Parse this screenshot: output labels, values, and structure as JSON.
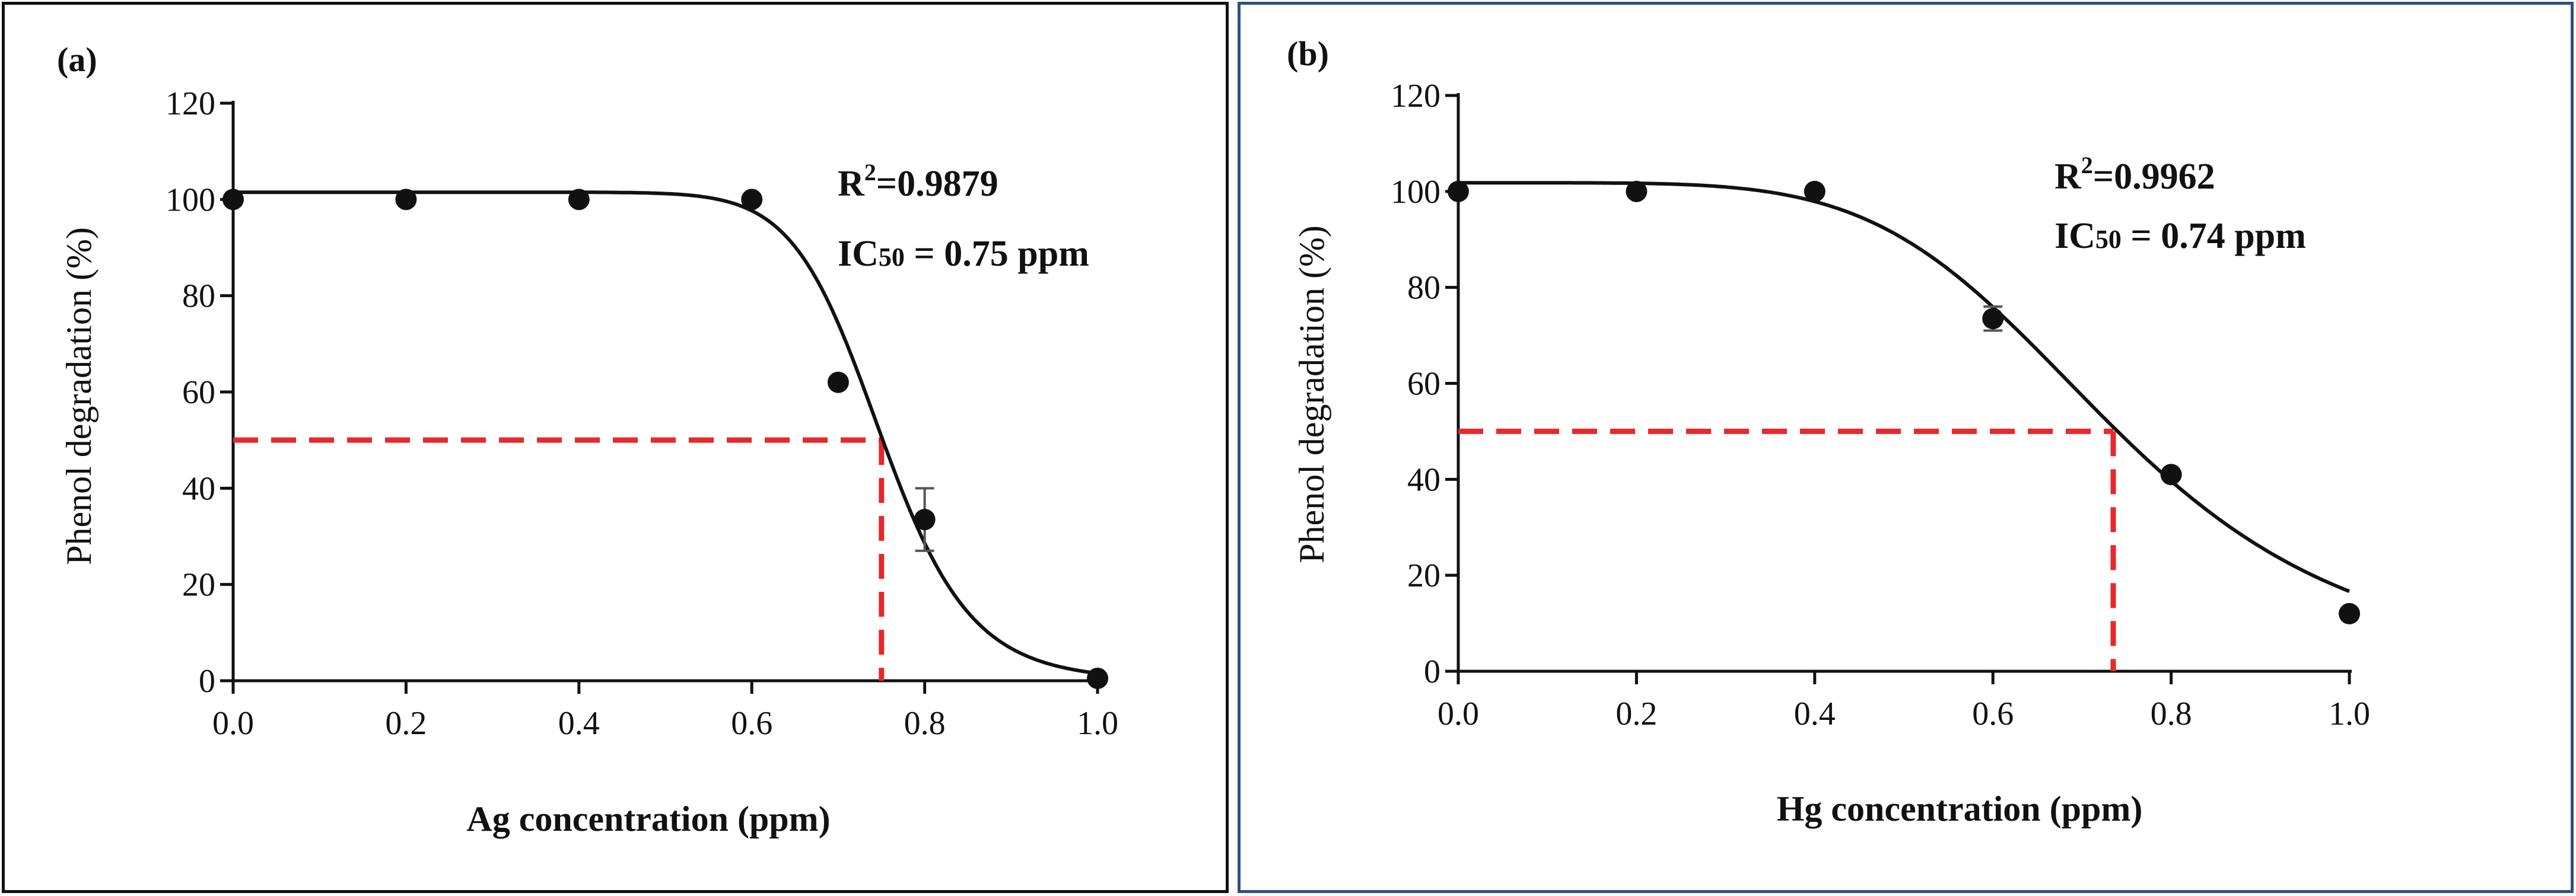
{
  "chart_data": [
    {
      "type": "scatter",
      "panel_label": "(a)",
      "xlabel": "Ag concentration (ppm)",
      "ylabel": "Phenol degradation (%)",
      "xlim": [
        0.0,
        1.0
      ],
      "ylim": [
        0,
        120
      ],
      "xticks": [
        "0.0",
        "0.2",
        "0.4",
        "0.6",
        "0.8",
        "1.0"
      ],
      "xtick_values": [
        0.0,
        0.2,
        0.4,
        0.6,
        0.8,
        1.0
      ],
      "yticks": [
        "0",
        "20",
        "40",
        "60",
        "80",
        "100",
        "120"
      ],
      "ytick_values": [
        0,
        20,
        40,
        60,
        80,
        100,
        120
      ],
      "series": [
        {
          "name": "Phenol degradation",
          "x": [
            0.0,
            0.2,
            0.4,
            0.6,
            0.7,
            0.8,
            1.0
          ],
          "y": [
            100,
            100,
            100,
            100,
            62,
            33.5,
            0.5
          ],
          "err": [
            0,
            0,
            0,
            0,
            0,
            6.5,
            0
          ]
        }
      ],
      "fit": {
        "top": 101.5,
        "bottom": 0,
        "ic50": 0.75,
        "hill": 14.5
      },
      "guide": {
        "y": 50,
        "x": 0.75
      },
      "annotations": {
        "r2_prefix": "R",
        "r2_sup": "2",
        "r2_value": "=0.9879",
        "ic50_prefix": "IC",
        "ic50_sub": "50",
        "ic50_value": " = 0.75 ppm"
      },
      "colors": {
        "points": "#111111",
        "fit": "#111111",
        "guide": "#e8282b"
      }
    },
    {
      "type": "scatter",
      "panel_label": "(b)",
      "xlabel": "Hg concentration (ppm)",
      "ylabel": "Phenol degradation (%)",
      "xlim": [
        0.0,
        1.0
      ],
      "ylim": [
        0,
        120
      ],
      "xticks": [
        "0.0",
        "0.2",
        "0.4",
        "0.6",
        "0.8",
        "1.0"
      ],
      "xtick_values": [
        0.0,
        0.2,
        0.4,
        0.6,
        0.8,
        1.0
      ],
      "yticks": [
        "0",
        "20",
        "40",
        "60",
        "80",
        "100",
        "120"
      ],
      "ytick_values": [
        0,
        20,
        40,
        60,
        80,
        100,
        120
      ],
      "series": [
        {
          "name": "Phenol degradation",
          "x": [
            0.0,
            0.2,
            0.4,
            0.6,
            0.8,
            1.0
          ],
          "y": [
            100,
            100,
            100,
            73.5,
            41,
            12
          ],
          "err": [
            0,
            0,
            0,
            2.5,
            0,
            0
          ]
        }
      ],
      "fit": {
        "top": 101.8,
        "bottom": 0,
        "ic50": 0.735,
        "hill": 5.3
      },
      "guide": {
        "y": 50,
        "x": 0.735
      },
      "annotations": {
        "r2_prefix": "R",
        "r2_sup": "2",
        "r2_value": "=0.9962",
        "ic50_prefix": "IC",
        "ic50_sub": "50",
        "ic50_value": " = 0.74 ppm"
      },
      "colors": {
        "points": "#111111",
        "fit": "#111111",
        "guide": "#e8282b"
      }
    }
  ]
}
